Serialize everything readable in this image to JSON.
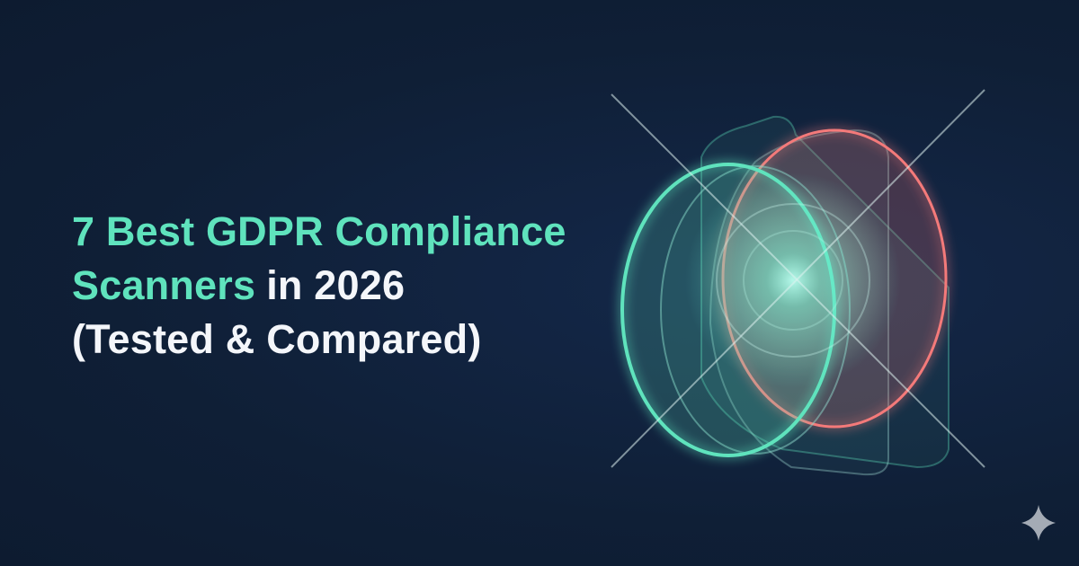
{
  "title": {
    "line1": "7 Best GDPR Compliance",
    "line2_accent": "Scanners",
    "line2_rest": "in 2026",
    "line3": "(Tested & Compared)"
  }
}
